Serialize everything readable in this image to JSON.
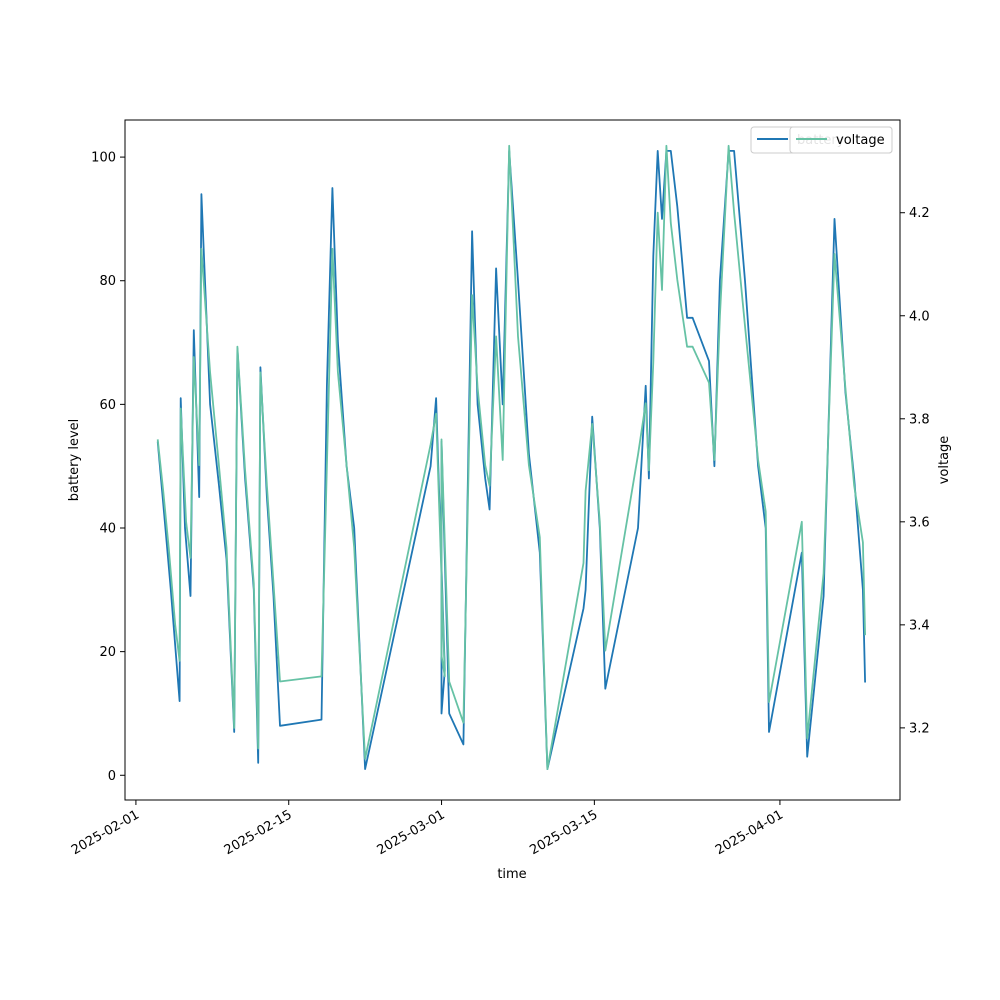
{
  "chart_data": {
    "type": "line",
    "xlabel": "time",
    "ylabel": "battery level",
    "y2label": "voltage",
    "xlim": [
      "2025-01-31",
      "2025-04-12"
    ],
    "ylim": [
      -4,
      106
    ],
    "y2lim": [
      3.06,
      4.38
    ],
    "grid": false,
    "legend": "top-right",
    "x_ticks": [
      "2025-02-01",
      "2025-02-15",
      "2025-03-01",
      "2025-03-15",
      "2025-04-01"
    ],
    "y_ticks": [
      0,
      20,
      40,
      60,
      80,
      100
    ],
    "y2_ticks": [
      3.2,
      3.4,
      3.6,
      3.8,
      4.0,
      4.2
    ],
    "series": [
      {
        "name": "battery",
        "axis": "left",
        "color": "#1f77b4",
        "points": [
          [
            "2025-02-03",
            54
          ],
          [
            "2025-02-03.3",
            48
          ],
          [
            "2025-02-03.7",
            40
          ],
          [
            "2025-02-04.2",
            30
          ],
          [
            "2025-02-05",
            12
          ],
          [
            "2025-02-05.1",
            61
          ],
          [
            "2025-02-05.5",
            40
          ],
          [
            "2025-02-06",
            29
          ],
          [
            "2025-02-06.3",
            72
          ],
          [
            "2025-02-06.8",
            45
          ],
          [
            "2025-02-07",
            94
          ],
          [
            "2025-02-07.8",
            60
          ],
          [
            "2025-02-08.6",
            47
          ],
          [
            "2025-02-09.3",
            35
          ],
          [
            "2025-02-10",
            7
          ],
          [
            "2025-02-10.3",
            69
          ],
          [
            "2025-02-11",
            48
          ],
          [
            "2025-02-11.8",
            30
          ],
          [
            "2025-02-12.2",
            2
          ],
          [
            "2025-02-12.4",
            66
          ],
          [
            "2025-02-13",
            45
          ],
          [
            "2025-02-13.6",
            29
          ],
          [
            "2025-02-14.2",
            8
          ],
          [
            "2025-02-18",
            9
          ],
          [
            "2025-02-18.5",
            63
          ],
          [
            "2025-02-19",
            95
          ],
          [
            "2025-02-19.5",
            70
          ],
          [
            "2025-02-20.3",
            50
          ],
          [
            "2025-02-21",
            40
          ],
          [
            "2025-02-22",
            1
          ],
          [
            "2025-02-28",
            50
          ],
          [
            "2025-02-28.5",
            61
          ],
          [
            "2025-02-29.3",
            17
          ],
          [
            "2025-03-01",
            10
          ],
          [
            "2025-03-01",
            54
          ],
          [
            "2025-03-01.7",
            10
          ],
          [
            "2025-03-03",
            5
          ],
          [
            "2025-03-03.8",
            88
          ],
          [
            "2025-03-04.3",
            60
          ],
          [
            "2025-03-05",
            48
          ],
          [
            "2025-03-05.4",
            43
          ],
          [
            "2025-03-06",
            82
          ],
          [
            "2025-03-06.6",
            60
          ],
          [
            "2025-03-07.2",
            101
          ],
          [
            "2025-03-08",
            80
          ],
          [
            "2025-03-09",
            52
          ],
          [
            "2025-03-10",
            36
          ],
          [
            "2025-03-10.7",
            1
          ],
          [
            "2025-03-14",
            27
          ],
          [
            "2025-03-14.2",
            30
          ],
          [
            "2025-03-14.8",
            58
          ],
          [
            "2025-03-15.5",
            40
          ],
          [
            "2025-03-16",
            14
          ],
          [
            "2025-03-19",
            40
          ],
          [
            "2025-03-19.7",
            63
          ],
          [
            "2025-03-20",
            48
          ],
          [
            "2025-03-20.4",
            84
          ],
          [
            "2025-03-20.8",
            101
          ],
          [
            "2025-03-21.2",
            90
          ],
          [
            "2025-03-21.6",
            101
          ],
          [
            "2025-03-22",
            101
          ],
          [
            "2025-03-22.6",
            92
          ],
          [
            "2025-03-23.5",
            74
          ],
          [
            "2025-03-24",
            74
          ],
          [
            "2025-03-25.5",
            67
          ],
          [
            "2025-03-26",
            50
          ],
          [
            "2025-03-26.5",
            80
          ],
          [
            "2025-03-27.3",
            101
          ],
          [
            "2025-03-27.8",
            101
          ],
          [
            "2025-03-28.8",
            80
          ],
          [
            "2025-03-30",
            50
          ],
          [
            "2025-03-30.7",
            40
          ],
          [
            "2025-03-31",
            7
          ],
          [
            "2025-04-03",
            36
          ],
          [
            "2025-04-03.5",
            3
          ],
          [
            "2025-04-05",
            29
          ],
          [
            "2025-04-06",
            90
          ],
          [
            "2025-04-07",
            62
          ],
          [
            "2025-04-07.8",
            48
          ],
          [
            "2025-04-08.6",
            30
          ],
          [
            "2025-04-08.8",
            15
          ]
        ]
      },
      {
        "name": "voltage",
        "axis": "right",
        "color": "#66c2a5",
        "points": [
          [
            "2025-02-03",
            3.76
          ],
          [
            "2025-02-03.5",
            3.66
          ],
          [
            "2025-02-04",
            3.55
          ],
          [
            "2025-02-04.6",
            3.4
          ],
          [
            "2025-02-05",
            3.33
          ],
          [
            "2025-02-05.1",
            3.82
          ],
          [
            "2025-02-05.6",
            3.6
          ],
          [
            "2025-02-06",
            3.53
          ],
          [
            "2025-02-06.3",
            3.92
          ],
          [
            "2025-02-06.8",
            3.71
          ],
          [
            "2025-02-07",
            4.13
          ],
          [
            "2025-02-07.8",
            3.89
          ],
          [
            "2025-02-08.6",
            3.71
          ],
          [
            "2025-02-09.3",
            3.55
          ],
          [
            "2025-02-10",
            3.2
          ],
          [
            "2025-02-10.3",
            3.94
          ],
          [
            "2025-02-11",
            3.7
          ],
          [
            "2025-02-11.8",
            3.48
          ],
          [
            "2025-02-12.2",
            3.16
          ],
          [
            "2025-02-12.4",
            3.89
          ],
          [
            "2025-02-13",
            3.67
          ],
          [
            "2025-02-13.6",
            3.48
          ],
          [
            "2025-02-14.2",
            3.29
          ],
          [
            "2025-02-18",
            3.3
          ],
          [
            "2025-02-18.5",
            3.71
          ],
          [
            "2025-02-19",
            4.13
          ],
          [
            "2025-02-19.5",
            3.89
          ],
          [
            "2025-02-20.3",
            3.71
          ],
          [
            "2025-02-21",
            3.55
          ],
          [
            "2025-02-22",
            3.14
          ],
          [
            "2025-02-28",
            3.75
          ],
          [
            "2025-02-28.5",
            3.81
          ],
          [
            "2025-02-29.3",
            3.3
          ],
          [
            "2025-03-01",
            3.34
          ],
          [
            "2025-03-01",
            3.76
          ],
          [
            "2025-03-01.7",
            3.29
          ],
          [
            "2025-03-03",
            3.21
          ],
          [
            "2025-03-03.8",
            4.04
          ],
          [
            "2025-03-04.3",
            3.86
          ],
          [
            "2025-03-05",
            3.71
          ],
          [
            "2025-03-05.4",
            3.67
          ],
          [
            "2025-03-06",
            3.96
          ],
          [
            "2025-03-06.6",
            3.72
          ],
          [
            "2025-03-07.2",
            4.33
          ],
          [
            "2025-03-08",
            3.96
          ],
          [
            "2025-03-09",
            3.71
          ],
          [
            "2025-03-10",
            3.57
          ],
          [
            "2025-03-10.7",
            3.12
          ],
          [
            "2025-03-14",
            3.52
          ],
          [
            "2025-03-14.2",
            3.66
          ],
          [
            "2025-03-14.8",
            3.79
          ],
          [
            "2025-03-15.5",
            3.6
          ],
          [
            "2025-03-16",
            3.35
          ],
          [
            "2025-03-19",
            3.73
          ],
          [
            "2025-03-19.7",
            3.83
          ],
          [
            "2025-03-20",
            3.7
          ],
          [
            "2025-03-20.4",
            3.91
          ],
          [
            "2025-03-20.8",
            4.2
          ],
          [
            "2025-03-21.2",
            4.05
          ],
          [
            "2025-03-21.6",
            4.33
          ],
          [
            "2025-03-22",
            4.18
          ],
          [
            "2025-03-22.6",
            4.07
          ],
          [
            "2025-03-23.5",
            3.94
          ],
          [
            "2025-03-24",
            3.94
          ],
          [
            "2025-03-25.5",
            3.87
          ],
          [
            "2025-03-26",
            3.72
          ],
          [
            "2025-03-26.5",
            4.0
          ],
          [
            "2025-03-27.3",
            4.33
          ],
          [
            "2025-03-27.8",
            4.2
          ],
          [
            "2025-03-28.8",
            3.98
          ],
          [
            "2025-03-30",
            3.72
          ],
          [
            "2025-03-30.7",
            3.62
          ],
          [
            "2025-03-31",
            3.25
          ],
          [
            "2025-04-03",
            3.6
          ],
          [
            "2025-04-03.5",
            3.18
          ],
          [
            "2025-04-05",
            3.5
          ],
          [
            "2025-04-06",
            4.12
          ],
          [
            "2025-04-07",
            3.86
          ],
          [
            "2025-04-07.8",
            3.67
          ],
          [
            "2025-04-08.6",
            3.56
          ],
          [
            "2025-04-08.8",
            3.38
          ]
        ]
      }
    ]
  }
}
